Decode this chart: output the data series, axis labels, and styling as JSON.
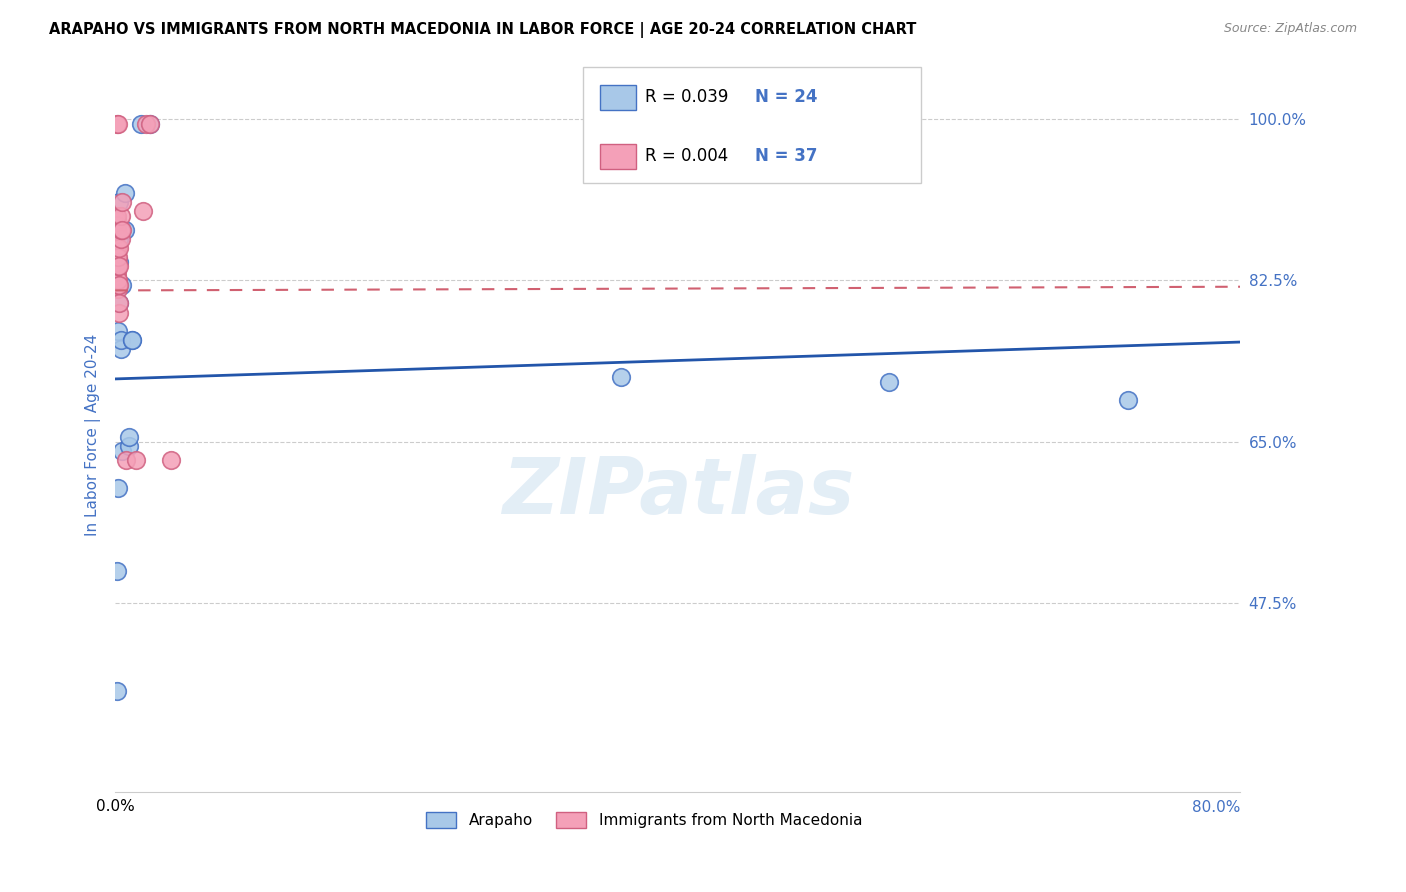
{
  "title": "ARAPAHO VS IMMIGRANTS FROM NORTH MACEDONIA IN LABOR FORCE | AGE 20-24 CORRELATION CHART",
  "source": "Source: ZipAtlas.com",
  "ylabel": "In Labor Force | Age 20-24",
  "blue_color": "#a8c8e8",
  "blue_edge_color": "#4472c4",
  "pink_color": "#f4a0b8",
  "pink_edge_color": "#d06080",
  "blue_line_color": "#2255aa",
  "pink_line_color": "#d06070",
  "ytick_color": "#4472c4",
  "xlim": [
    0.0,
    0.8
  ],
  "ylim": [
    0.27,
    1.045
  ],
  "ytick_values": [
    1.0,
    0.825,
    0.65,
    0.475
  ],
  "ytick_labels": [
    "100.0%",
    "82.5%",
    "65.0%",
    "47.5%"
  ],
  "watermark": "ZIPatlas",
  "legend_r_blue": "0.039",
  "legend_n_blue": "24",
  "legend_r_pink": "0.004",
  "legend_n_pink": "37",
  "arapaho_x": [
    0.001,
    0.001,
    0.002,
    0.002,
    0.003,
    0.003,
    0.003,
    0.003,
    0.003,
    0.004,
    0.004,
    0.005,
    0.005,
    0.007,
    0.007,
    0.01,
    0.01,
    0.012,
    0.012,
    0.018,
    0.025,
    0.36,
    0.55,
    0.72
  ],
  "arapaho_y": [
    0.38,
    0.51,
    0.6,
    0.77,
    0.8,
    0.82,
    0.845,
    0.87,
    0.91,
    0.75,
    0.76,
    0.64,
    0.82,
    0.88,
    0.92,
    0.645,
    0.655,
    0.76,
    0.76,
    0.995,
    0.995,
    0.72,
    0.715,
    0.695
  ],
  "macedonia_x": [
    0.001,
    0.001,
    0.001,
    0.001,
    0.001,
    0.001,
    0.001,
    0.001,
    0.001,
    0.001,
    0.001,
    0.001,
    0.001,
    0.001,
    0.001,
    0.002,
    0.002,
    0.002,
    0.002,
    0.002,
    0.002,
    0.003,
    0.003,
    0.003,
    0.003,
    0.003,
    0.004,
    0.004,
    0.004,
    0.005,
    0.005,
    0.008,
    0.015,
    0.02,
    0.022,
    0.025,
    0.04
  ],
  "macedonia_y": [
    0.82,
    0.825,
    0.83,
    0.835,
    0.84,
    0.845,
    0.85,
    0.855,
    0.86,
    0.875,
    0.88,
    0.885,
    0.89,
    0.895,
    0.995,
    0.815,
    0.82,
    0.825,
    0.84,
    0.85,
    0.995,
    0.79,
    0.8,
    0.82,
    0.84,
    0.86,
    0.87,
    0.88,
    0.895,
    0.88,
    0.91,
    0.63,
    0.63,
    0.9,
    0.995,
    0.995,
    0.63
  ],
  "blue_trend_x": [
    0.0,
    0.8
  ],
  "blue_trend_y": [
    0.718,
    0.758
  ],
  "pink_trend_x": [
    0.0,
    0.8
  ],
  "pink_trend_y": [
    0.814,
    0.818
  ]
}
